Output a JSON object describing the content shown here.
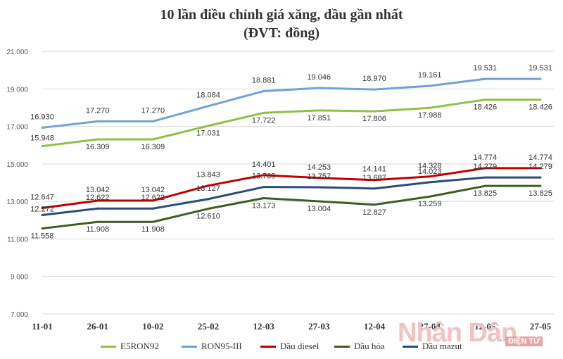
{
  "watermark": {
    "text": "Nhân Dân",
    "badge": "ĐIỆN TỬ"
  },
  "chart_data": {
    "type": "line",
    "title": "10 lần điều chỉnh giá xăng, dầu gần nhất",
    "subtitle": "(ĐVT: đồng)",
    "categories": [
      "11-01",
      "26-01",
      "10-02",
      "25-02",
      "12-03",
      "27-03",
      "12-04",
      "27-04",
      "12-05",
      "27-05"
    ],
    "ylim": [
      7000,
      21000
    ],
    "yticks": [
      7000,
      9000,
      11000,
      13000,
      15000,
      17000,
      19000,
      21000
    ],
    "ytick_labels": [
      "7.000",
      "9.000",
      "11.000",
      "13.000",
      "15.000",
      "17.000",
      "19.000",
      "21.000"
    ],
    "grid": true,
    "legend_position": "bottom",
    "series": [
      {
        "name": "E5RON92",
        "color": "#8ec04a",
        "values": [
          15948,
          16309,
          16309,
          17031,
          17722,
          17851,
          17806,
          17988,
          18426,
          18426
        ],
        "labels": [
          "15.948",
          "16.309",
          "16.309",
          "17.031",
          "17.722",
          "17.851",
          "17.806",
          "17.988",
          "18.426",
          "18.426"
        ]
      },
      {
        "name": "RON95-III",
        "color": "#6fa3d6",
        "values": [
          16930,
          17270,
          17270,
          18084,
          18881,
          19046,
          18970,
          19161,
          19531,
          19531
        ],
        "labels": [
          "16.930",
          "17.270",
          "17.270",
          "18.084",
          "18.881",
          "19.046",
          "18.970",
          "19.161",
          "19.531",
          "19.531"
        ]
      },
      {
        "name": "Dầu diesel",
        "color": "#c00000",
        "values": [
          12647,
          13042,
          13042,
          13843,
          14401,
          14253,
          14141,
          14328,
          14774,
          14774
        ],
        "labels": [
          "12.647",
          "13.042",
          "13.042",
          "13.843",
          "14.401",
          "14.253",
          "14.141",
          "14.328",
          "14.774",
          "14.774"
        ]
      },
      {
        "name": "Dầu hỏa",
        "color": "#3d5e1f",
        "values": [
          11558,
          11908,
          11908,
          12610,
          13173,
          13004,
          12827,
          13259,
          13825,
          13825
        ],
        "labels": [
          "11.558",
          "11.908",
          "11.908",
          "12.610",
          "13.173",
          "13.004",
          "12.827",
          "13.259",
          "13.825",
          "13.825"
        ]
      },
      {
        "name": "Dầu mazut",
        "color": "#2b4b7d",
        "values": [
          12272,
          12622,
          12622,
          13127,
          13769,
          13757,
          13687,
          14023,
          14279,
          14279
        ],
        "labels": [
          "12.272",
          "12.622",
          "12.622",
          "13.127",
          "13.769",
          "13.757",
          "13.687",
          "14.023",
          "14.279",
          "14.279"
        ]
      }
    ]
  }
}
